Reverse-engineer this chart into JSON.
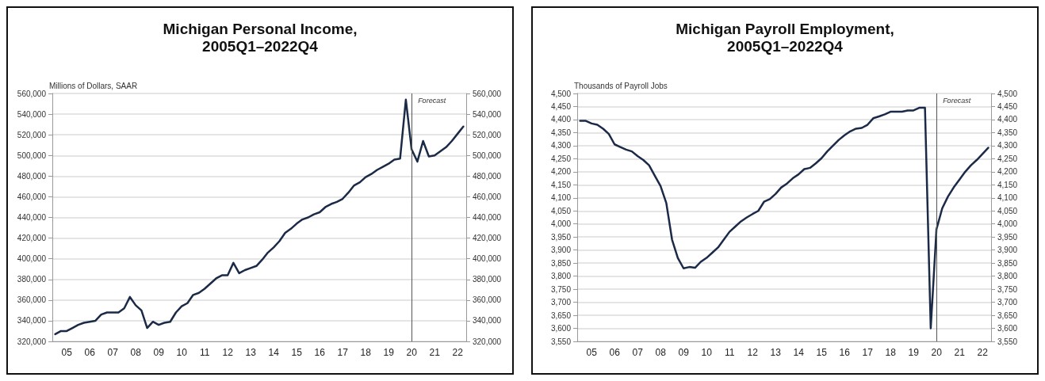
{
  "chart_data": [
    {
      "type": "line",
      "title": "Michigan Personal Income,\n2005Q1–2022Q4",
      "ylabel": "Millions of Dollars, SAAR",
      "categories": [
        null,
        null,
        "05",
        null,
        null,
        null,
        "06",
        null,
        null,
        null,
        "07",
        null,
        null,
        null,
        "08",
        null,
        null,
        null,
        "09",
        null,
        null,
        null,
        "10",
        null,
        null,
        null,
        "11",
        null,
        null,
        null,
        "12",
        null,
        null,
        null,
        "13",
        null,
        null,
        null,
        "14",
        null,
        null,
        null,
        "15",
        null,
        null,
        null,
        "16",
        null,
        null,
        null,
        "17",
        null,
        null,
        null,
        "18",
        null,
        null,
        null,
        "19",
        null,
        null,
        null,
        "20",
        null,
        null,
        null,
        "21",
        null,
        null,
        null,
        "22",
        null
      ],
      "series": [
        {
          "color": "#1b2a47",
          "values": [
            327000,
            330000,
            330000,
            333000,
            336000,
            338000,
            339000,
            340000,
            346000,
            348000,
            348000,
            348000,
            352000,
            363000,
            355000,
            350000,
            333000,
            339000,
            336000,
            338000,
            339000,
            348000,
            354000,
            357000,
            365000,
            367000,
            371000,
            376000,
            381000,
            384000,
            384000,
            396000,
            386000,
            389000,
            391000,
            393000,
            399000,
            406000,
            411000,
            417000,
            425000,
            429000,
            434000,
            438000,
            440000,
            443000,
            445000,
            450000,
            453000,
            455000,
            458000,
            464000,
            471000,
            474000,
            479000,
            482000,
            486000,
            489000,
            492000,
            496000,
            497000,
            554000,
            506000,
            494000,
            514000,
            499000,
            500000,
            504000,
            508000,
            514000,
            521000,
            528000
          ]
        }
      ],
      "ylim": [
        320000,
        560000
      ],
      "yticks": [
        {
          "value": 320000,
          "label": "320,000"
        },
        {
          "value": 340000,
          "label": "340,000"
        },
        {
          "value": 360000,
          "label": "360,000"
        },
        {
          "value": 380000,
          "label": "380,000"
        },
        {
          "value": 400000,
          "label": "400,000"
        },
        {
          "value": 420000,
          "label": "420,000"
        },
        {
          "value": 440000,
          "label": "440,000"
        },
        {
          "value": 460000,
          "label": "460,000"
        },
        {
          "value": 480000,
          "label": "480,000"
        },
        {
          "value": 500000,
          "label": "500,000"
        },
        {
          "value": 520000,
          "label": "520,000"
        },
        {
          "value": 540000,
          "label": "540,000"
        },
        {
          "value": 560000,
          "label": "560,000"
        }
      ],
      "y2lim": [
        320000,
        560000
      ],
      "y2ticks": [
        {
          "value": 320000,
          "label": "320,000"
        },
        {
          "value": 340000,
          "label": "340,000"
        },
        {
          "value": 360000,
          "label": "360,000"
        },
        {
          "value": 380000,
          "label": "380,000"
        },
        {
          "value": 400000,
          "label": "400,000"
        },
        {
          "value": 420000,
          "label": "420,000"
        },
        {
          "value": 440000,
          "label": "440,000"
        },
        {
          "value": 460000,
          "label": "460,000"
        },
        {
          "value": 480000,
          "label": "480,000"
        },
        {
          "value": 500000,
          "label": "500,000"
        },
        {
          "value": 520000,
          "label": "520,000"
        },
        {
          "value": 540000,
          "label": "540,000"
        },
        {
          "value": 560000,
          "label": "560,000"
        }
      ],
      "ref_lines": [
        {
          "axis": "x",
          "value": "20",
          "label": "Forecast",
          "color": "#555555"
        }
      ],
      "grid": "y",
      "marker": "none",
      "line_style": "solid"
    },
    {
      "type": "line",
      "title": "Michigan Payroll Employment,\n2005Q1–2022Q4",
      "ylabel": "Thousands of Payroll Jobs",
      "categories": [
        null,
        null,
        "05",
        null,
        null,
        null,
        "06",
        null,
        null,
        null,
        "07",
        null,
        null,
        null,
        "08",
        null,
        null,
        null,
        "09",
        null,
        null,
        null,
        "10",
        null,
        null,
        null,
        "11",
        null,
        null,
        null,
        "12",
        null,
        null,
        null,
        "13",
        null,
        null,
        null,
        "14",
        null,
        null,
        null,
        "15",
        null,
        null,
        null,
        "16",
        null,
        null,
        null,
        "17",
        null,
        null,
        null,
        "18",
        null,
        null,
        null,
        "19",
        null,
        null,
        null,
        "20",
        null,
        null,
        null,
        "21",
        null,
        null,
        null,
        "22",
        null
      ],
      "series": [
        {
          "color": "#1b2a47",
          "values": [
            4395,
            4395,
            4385,
            4380,
            4365,
            4345,
            4305,
            4295,
            4285,
            4278,
            4260,
            4245,
            4225,
            4185,
            4145,
            4080,
            3940,
            3870,
            3830,
            3835,
            3832,
            3855,
            3870,
            3890,
            3910,
            3940,
            3970,
            3990,
            4010,
            4025,
            4038,
            4050,
            4085,
            4095,
            4115,
            4140,
            4155,
            4175,
            4190,
            4210,
            4215,
            4232,
            4252,
            4278,
            4300,
            4322,
            4340,
            4355,
            4365,
            4368,
            4380,
            4405,
            4412,
            4420,
            4430,
            4430,
            4430,
            4435,
            4435,
            4445,
            4445,
            3600,
            3980,
            4060,
            4105,
            4140,
            4170,
            4200,
            4225,
            4245,
            4268,
            4292
          ]
        }
      ],
      "ylim": [
        3550,
        4500
      ],
      "yticks": [
        {
          "value": 3550,
          "label": "3,550"
        },
        {
          "value": 3600,
          "label": "3,600"
        },
        {
          "value": 3650,
          "label": "3,650"
        },
        {
          "value": 3700,
          "label": "3,700"
        },
        {
          "value": 3750,
          "label": "3,750"
        },
        {
          "value": 3800,
          "label": "3,800"
        },
        {
          "value": 3850,
          "label": "3,850"
        },
        {
          "value": 3900,
          "label": "3,900"
        },
        {
          "value": 3950,
          "label": "3,950"
        },
        {
          "value": 4000,
          "label": "4,000"
        },
        {
          "value": 4050,
          "label": "4,050"
        },
        {
          "value": 4100,
          "label": "4,100"
        },
        {
          "value": 4150,
          "label": "4,150"
        },
        {
          "value": 4200,
          "label": "4,200"
        },
        {
          "value": 4250,
          "label": "4,250"
        },
        {
          "value": 4300,
          "label": "4,300"
        },
        {
          "value": 4350,
          "label": "4,350"
        },
        {
          "value": 4400,
          "label": "4,400"
        },
        {
          "value": 4450,
          "label": "4,450"
        },
        {
          "value": 4500,
          "label": "4,500"
        }
      ],
      "y2lim": [
        3550,
        4500
      ],
      "y2ticks": [
        {
          "value": 3550,
          "label": "3,550"
        },
        {
          "value": 3600,
          "label": "3,600"
        },
        {
          "value": 3650,
          "label": "3,650"
        },
        {
          "value": 3700,
          "label": "3,700"
        },
        {
          "value": 3750,
          "label": "3,750"
        },
        {
          "value": 3800,
          "label": "3,800"
        },
        {
          "value": 3850,
          "label": "3,850"
        },
        {
          "value": 3900,
          "label": "3,900"
        },
        {
          "value": 3950,
          "label": "3,950"
        },
        {
          "value": 4000,
          "label": "4,000"
        },
        {
          "value": 4050,
          "label": "4,050"
        },
        {
          "value": 4100,
          "label": "4,100"
        },
        {
          "value": 4150,
          "label": "4,150"
        },
        {
          "value": 4200,
          "label": "4,200"
        },
        {
          "value": 4250,
          "label": "4,250"
        },
        {
          "value": 4300,
          "label": "4,300"
        },
        {
          "value": 4350,
          "label": "4,350"
        },
        {
          "value": 4400,
          "label": "4,400"
        },
        {
          "value": 4450,
          "label": "4,450"
        },
        {
          "value": 4500,
          "label": "4,500"
        }
      ],
      "ref_lines": [
        {
          "axis": "x",
          "value": "20",
          "label": "Forecast",
          "color": "#555555"
        }
      ],
      "grid": "y",
      "marker": "none",
      "line_style": "solid"
    }
  ]
}
